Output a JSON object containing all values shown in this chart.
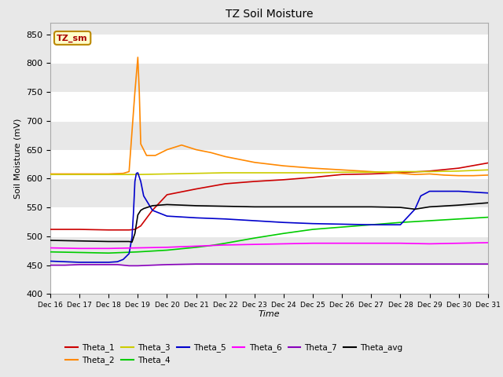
{
  "title": "TZ Soil Moisture",
  "xlabel": "Time",
  "ylabel": "Soil Moisture (mV)",
  "ylim": [
    400,
    870
  ],
  "yticks": [
    400,
    450,
    500,
    550,
    600,
    650,
    700,
    750,
    800,
    850
  ],
  "xlim": [
    0,
    15
  ],
  "xtick_labels": [
    "Dec 16",
    "Dec 17",
    "Dec 18",
    "Dec 19",
    "Dec 20",
    "Dec 21",
    "Dec 22",
    "Dec 23",
    "Dec 24",
    "Dec 25",
    "Dec 26",
    "Dec 27",
    "Dec 28",
    "Dec 29",
    "Dec 30",
    "Dec 31"
  ],
  "background_color": "#e8e8e8",
  "axes_bg_color": "#e8e8e8",
  "grid_color": "#ffffff",
  "annotation_text": "TZ_sm",
  "annotation_bg": "#ffffcc",
  "annotation_border": "#bb8800",
  "annotation_text_color": "#aa0000",
  "series": {
    "Theta_1": {
      "color": "#cc0000",
      "data_x": [
        0,
        1,
        2,
        2.7,
        2.9,
        3.0,
        3.1,
        3.5,
        4,
        5,
        6,
        7,
        8,
        9,
        10,
        11,
        12,
        13,
        14,
        15
      ],
      "data_y": [
        512,
        512,
        511,
        511,
        512,
        515,
        518,
        545,
        572,
        582,
        591,
        595,
        598,
        602,
        607,
        608,
        610,
        613,
        618,
        627
      ]
    },
    "Theta_2": {
      "color": "#ff8800",
      "data_x": [
        0,
        1,
        2,
        2.5,
        2.7,
        2.9,
        3.0,
        3.05,
        3.1,
        3.3,
        3.6,
        4.0,
        4.5,
        5,
        5.5,
        6,
        7,
        8,
        9,
        10,
        11,
        12,
        12.5,
        13,
        13.5,
        14,
        14.5,
        15
      ],
      "data_y": [
        608,
        608,
        608,
        609,
        612,
        750,
        810,
        750,
        660,
        640,
        640,
        650,
        658,
        650,
        645,
        638,
        628,
        622,
        618,
        615,
        612,
        609,
        607,
        608,
        606,
        605,
        605,
        606
      ]
    },
    "Theta_3": {
      "color": "#cccc00",
      "data_x": [
        0,
        1,
        2,
        3,
        4,
        5,
        6,
        7,
        8,
        9,
        10,
        11,
        12,
        13,
        14,
        15
      ],
      "data_y": [
        607,
        607,
        607,
        607,
        608,
        609,
        610,
        610,
        610,
        610,
        611,
        611,
        612,
        612,
        613,
        615
      ]
    },
    "Theta_4": {
      "color": "#00cc00",
      "data_x": [
        0,
        1,
        2,
        3,
        4,
        5,
        5.5,
        6,
        7,
        8,
        9,
        10,
        11,
        12,
        13,
        14,
        15
      ],
      "data_y": [
        473,
        472,
        471,
        473,
        476,
        481,
        484,
        488,
        497,
        505,
        512,
        516,
        520,
        524,
        527,
        530,
        533
      ]
    },
    "Theta_5": {
      "color": "#0000cc",
      "data_x": [
        0,
        0.5,
        1,
        1.5,
        2,
        2.3,
        2.5,
        2.7,
        2.8,
        2.85,
        2.9,
        2.95,
        3.0,
        3.1,
        3.2,
        3.5,
        4,
        5,
        6,
        7,
        8,
        9,
        10,
        11,
        12,
        12.5,
        12.7,
        13,
        14,
        15
      ],
      "data_y": [
        457,
        456,
        455,
        455,
        455,
        456,
        460,
        470,
        498,
        540,
        595,
        609,
        610,
        595,
        570,
        545,
        535,
        532,
        530,
        527,
        524,
        522,
        521,
        520,
        520,
        547,
        570,
        578,
        578,
        575
      ]
    },
    "Theta_6": {
      "color": "#ff00ff",
      "data_x": [
        0,
        1,
        2,
        3,
        4,
        5,
        6,
        7,
        8,
        9,
        10,
        11,
        12,
        13,
        14,
        15
      ],
      "data_y": [
        480,
        479,
        479,
        480,
        481,
        483,
        485,
        486,
        487,
        488,
        488,
        488,
        488,
        487,
        488,
        489
      ]
    },
    "Theta_7": {
      "color": "#8800bb",
      "data_x": [
        0,
        0.5,
        1,
        1.5,
        2,
        2.3,
        2.5,
        2.7,
        2.85,
        2.9,
        3.0,
        3.5,
        4,
        5,
        6,
        7,
        8,
        9,
        10,
        11,
        12,
        13,
        14,
        15
      ],
      "data_y": [
        450,
        450,
        451,
        451,
        451,
        451,
        450,
        449,
        449,
        449,
        449,
        450,
        451,
        452,
        452,
        452,
        452,
        452,
        452,
        452,
        452,
        452,
        452,
        452
      ]
    },
    "Theta_avg": {
      "color": "#000000",
      "data_x": [
        0,
        1,
        2,
        2.7,
        2.8,
        2.9,
        3.0,
        3.1,
        3.2,
        3.5,
        4,
        5,
        6,
        7,
        8,
        9,
        10,
        11,
        12,
        12.5,
        13,
        14,
        15
      ],
      "data_y": [
        493,
        492,
        491,
        491,
        490,
        505,
        537,
        545,
        548,
        553,
        555,
        553,
        552,
        551,
        551,
        551,
        551,
        551,
        550,
        547,
        551,
        554,
        558
      ]
    }
  },
  "legend_row1": [
    "Theta_1",
    "Theta_2",
    "Theta_3",
    "Theta_4",
    "Theta_5",
    "Theta_6"
  ],
  "legend_row2": [
    "Theta_7",
    "Theta_avg"
  ],
  "legend_colors": {
    "Theta_1": "#cc0000",
    "Theta_2": "#ff8800",
    "Theta_3": "#cccc00",
    "Theta_4": "#00cc00",
    "Theta_5": "#0000cc",
    "Theta_6": "#ff00ff",
    "Theta_7": "#8800bb",
    "Theta_avg": "#000000"
  }
}
